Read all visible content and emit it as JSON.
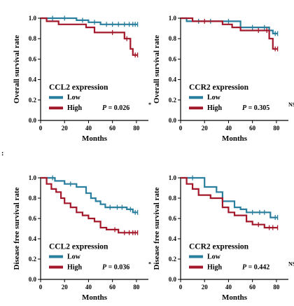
{
  "colors": {
    "low": "#2a7f9e",
    "high": "#a3182a"
  },
  "partial_label_mark": ":",
  "chart_data": [
    {
      "type": "line",
      "subtype": "kaplan-meier",
      "ylabel": "Overall survival rate",
      "xlabel": "Months",
      "xlim": [
        0,
        90
      ],
      "ylim": [
        0,
        1.0
      ],
      "xticks": [
        0,
        20,
        40,
        60,
        80
      ],
      "yticks": [
        0.0,
        0.2,
        0.4,
        0.6,
        0.8,
        1.0
      ],
      "ytick_labels": [
        "0.0",
        "0.2",
        "0.4",
        "0.6",
        "0.8",
        "1.0"
      ],
      "legend_title": "CCL2 expression",
      "p_label": "P",
      "p_value": "= 0.026",
      "significance": "*",
      "series": [
        {
          "name": "Low",
          "color": "#2a7f9e",
          "x": [
            0,
            30,
            30,
            40,
            40,
            50,
            50,
            81
          ],
          "y": [
            1.0,
            1.0,
            0.98,
            0.98,
            0.96,
            0.96,
            0.94,
            0.94
          ],
          "censor_x": [
            10,
            20,
            35,
            45,
            55,
            60,
            65,
            70,
            74,
            77,
            79,
            81
          ]
        },
        {
          "name": "High",
          "color": "#a3182a",
          "x": [
            0,
            5,
            5,
            15,
            15,
            38,
            38,
            45,
            45,
            70,
            70,
            75,
            75,
            77,
            77,
            81
          ],
          "y": [
            1.0,
            1.0,
            0.97,
            0.97,
            0.94,
            0.94,
            0.91,
            0.91,
            0.86,
            0.86,
            0.8,
            0.8,
            0.7,
            0.7,
            0.64,
            0.64
          ],
          "censor_x": [
            60,
            72,
            79,
            81
          ]
        }
      ]
    },
    {
      "type": "line",
      "subtype": "kaplan-meier",
      "ylabel": "Overall survival rate",
      "xlabel": "Months",
      "xlim": [
        0,
        90
      ],
      "ylim": [
        0,
        1.0
      ],
      "xticks": [
        0,
        20,
        40,
        60,
        80
      ],
      "yticks": [
        0.0,
        0.2,
        0.4,
        0.6,
        0.8,
        1.0
      ],
      "ytick_labels": [
        "0.0",
        "0.2",
        "0.4",
        "0.6",
        "0.8",
        "1.0"
      ],
      "legend_title": "CCR2 expression",
      "p_label": "P",
      "p_value": "= 0.305",
      "significance": "NS",
      "series": [
        {
          "name": "Low",
          "color": "#2a7f9e",
          "x": [
            0,
            5,
            5,
            50,
            50,
            74,
            74,
            77,
            77,
            81
          ],
          "y": [
            1.0,
            1.0,
            0.97,
            0.97,
            0.91,
            0.91,
            0.88,
            0.88,
            0.85,
            0.85
          ],
          "censor_x": [
            15,
            25,
            40,
            60,
            70,
            79,
            81
          ]
        },
        {
          "name": "High",
          "color": "#a3182a",
          "x": [
            0,
            10,
            10,
            35,
            35,
            43,
            43,
            50,
            50,
            74,
            74,
            77,
            77,
            81
          ],
          "y": [
            1.0,
            1.0,
            0.97,
            0.97,
            0.94,
            0.94,
            0.91,
            0.91,
            0.88,
            0.88,
            0.8,
            0.8,
            0.7,
            0.7
          ],
          "censor_x": [
            20,
            65,
            72,
            79,
            81
          ]
        }
      ]
    },
    {
      "type": "line",
      "subtype": "kaplan-meier",
      "ylabel": "Disease free survival rate",
      "xlabel": "Months",
      "xlim": [
        0,
        90
      ],
      "ylim": [
        0,
        1.0
      ],
      "xticks": [
        0,
        20,
        40,
        60,
        80
      ],
      "yticks": [
        0.0,
        0.2,
        0.4,
        0.6,
        0.8,
        1.0
      ],
      "ytick_labels": [
        "0.0",
        "0.2",
        "0.4",
        "0.6",
        "0.8",
        "1.0"
      ],
      "legend_title": "CCL2 expression",
      "p_label": "P",
      "p_value": "= 0.036",
      "significance": "*",
      "series": [
        {
          "name": "Low",
          "color": "#2a7f9e",
          "x": [
            0,
            12,
            12,
            20,
            20,
            30,
            30,
            38,
            38,
            42,
            42,
            46,
            46,
            50,
            50,
            54,
            54,
            60,
            60,
            72,
            72,
            77,
            77,
            81
          ],
          "y": [
            1.0,
            1.0,
            0.97,
            0.97,
            0.94,
            0.94,
            0.91,
            0.91,
            0.85,
            0.85,
            0.8,
            0.8,
            0.77,
            0.77,
            0.74,
            0.74,
            0.71,
            0.71,
            0.71,
            0.71,
            0.69,
            0.69,
            0.66,
            0.66
          ],
          "censor_x": [
            10,
            25,
            58,
            64,
            68,
            75,
            79,
            81
          ]
        },
        {
          "name": "High",
          "color": "#a3182a",
          "x": [
            0,
            5,
            5,
            9,
            9,
            13,
            13,
            17,
            17,
            20,
            20,
            25,
            25,
            30,
            30,
            35,
            35,
            40,
            40,
            45,
            45,
            50,
            50,
            55,
            55,
            60,
            60,
            65,
            65,
            81
          ],
          "y": [
            1.0,
            1.0,
            0.94,
            0.94,
            0.89,
            0.89,
            0.86,
            0.86,
            0.8,
            0.8,
            0.75,
            0.75,
            0.71,
            0.71,
            0.66,
            0.66,
            0.63,
            0.63,
            0.6,
            0.6,
            0.57,
            0.57,
            0.51,
            0.51,
            0.49,
            0.49,
            0.49,
            0.49,
            0.46,
            0.46
          ],
          "censor_x": [
            62,
            70,
            74,
            77,
            79,
            81
          ]
        }
      ]
    },
    {
      "type": "line",
      "subtype": "kaplan-meier",
      "ylabel": "Disease free survival rate",
      "xlabel": "Months",
      "xlim": [
        0,
        90
      ],
      "ylim": [
        0,
        1.0
      ],
      "xticks": [
        0,
        20,
        40,
        60,
        80
      ],
      "yticks": [
        0.0,
        0.2,
        0.4,
        0.6,
        0.8,
        1.0
      ],
      "ytick_labels": [
        "0.0",
        "0.2",
        "0.4",
        "0.6",
        "0.8",
        "1.0"
      ],
      "legend_title": "CCR2 expression",
      "p_label": "P",
      "p_value": "= 0.442",
      "significance": "NS",
      "series": [
        {
          "name": "Low",
          "color": "#2a7f9e",
          "x": [
            0,
            20,
            20,
            30,
            30,
            35,
            35,
            45,
            45,
            50,
            50,
            55,
            55,
            75,
            75,
            81
          ],
          "y": [
            1.0,
            1.0,
            0.91,
            0.91,
            0.86,
            0.86,
            0.77,
            0.77,
            0.71,
            0.71,
            0.69,
            0.69,
            0.66,
            0.66,
            0.61,
            0.61
          ],
          "censor_x": [
            10,
            60,
            66,
            70,
            79,
            81
          ]
        },
        {
          "name": "High",
          "color": "#a3182a",
          "x": [
            0,
            5,
            5,
            10,
            10,
            15,
            15,
            25,
            25,
            35,
            35,
            40,
            40,
            45,
            45,
            55,
            55,
            60,
            60,
            70,
            70,
            81
          ],
          "y": [
            1.0,
            1.0,
            0.94,
            0.94,
            0.89,
            0.89,
            0.83,
            0.83,
            0.8,
            0.8,
            0.71,
            0.71,
            0.66,
            0.66,
            0.63,
            0.63,
            0.57,
            0.57,
            0.54,
            0.54,
            0.51,
            0.51
          ],
          "censor_x": [
            65,
            74,
            77,
            81
          ]
        }
      ]
    }
  ]
}
